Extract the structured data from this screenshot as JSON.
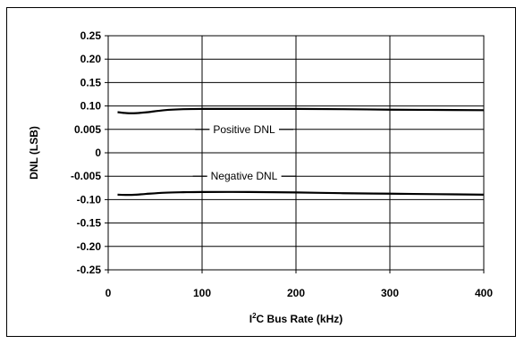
{
  "chart_data": {
    "type": "line",
    "xlabel": {
      "prefix": "I",
      "superscript": "2",
      "suffix": "C Bus Rate (kHz)"
    },
    "ylabel": "DNL (LSB)",
    "xlim": [
      0,
      400
    ],
    "x_ticks": [
      "0",
      "100",
      "200",
      "300",
      "400"
    ],
    "y_tick_labels": [
      "0.25",
      "0.20",
      "0.15",
      "0.10",
      "0.005",
      "0",
      "-0.005",
      "-0.10",
      "-0.15",
      "-0.20",
      "-0.25"
    ],
    "grid": true,
    "series": [
      {
        "name": "Positive DNL",
        "x": [
          10,
          20,
          30,
          40,
          60,
          80,
          100,
          150,
          200,
          250,
          300,
          350,
          400
        ],
        "y": [
          0.075,
          0.071,
          0.071,
          0.074,
          0.083,
          0.087,
          0.088,
          0.088,
          0.088,
          0.087,
          0.085,
          0.084,
          0.083
        ]
      },
      {
        "name": "Negative DNL",
        "x": [
          10,
          20,
          30,
          40,
          60,
          80,
          100,
          150,
          200,
          250,
          300,
          350,
          400
        ],
        "y": [
          -0.08,
          -0.081,
          -0.08,
          -0.077,
          -0.072,
          -0.07,
          -0.069,
          -0.069,
          -0.071,
          -0.074,
          -0.076,
          -0.078,
          -0.08
        ]
      }
    ]
  }
}
